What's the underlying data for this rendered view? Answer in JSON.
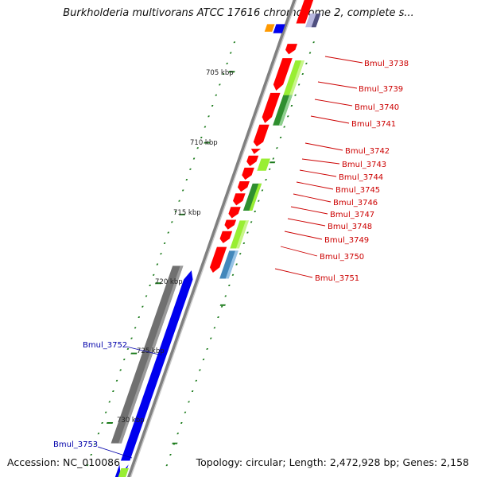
{
  "map": {
    "title": "Burkholderia multivorans ATCC 17616 chromosome 2, complete s...",
    "accession": "Accession: NC_010086",
    "topology": "Topology: circular; Length: 2,472,928 bp; Genes: 2,158"
  },
  "colors": {
    "forward_label": "#cc0000",
    "reverse_label": "#0000aa",
    "forward_cds": "#ff0000",
    "reverse_cds": "#0000ff",
    "backbone": "#808080",
    "ticks": "#1a7a1a",
    "cog_a": "#99ee33",
    "cog_b": "#2f8f2f",
    "cog_c": "#4488bb"
  },
  "ticks": [
    {
      "label": "705 kbp"
    },
    {
      "label": "710 kbp"
    },
    {
      "label": "715 kbp"
    },
    {
      "label": "720 kbp"
    },
    {
      "label": "725 kbp"
    },
    {
      "label": "730 kbp"
    }
  ],
  "genes": [
    {
      "label": "Bmul_3738",
      "strand": "forward"
    },
    {
      "label": "Bmul_3739",
      "strand": "forward"
    },
    {
      "label": "Bmul_3740",
      "strand": "forward"
    },
    {
      "label": "Bmul_3741",
      "strand": "forward"
    },
    {
      "label": "Bmul_3742",
      "strand": "forward"
    },
    {
      "label": "Bmul_3743",
      "strand": "forward"
    },
    {
      "label": "Bmul_3744",
      "strand": "forward"
    },
    {
      "label": "Bmul_3745",
      "strand": "forward"
    },
    {
      "label": "Bmul_3746",
      "strand": "forward"
    },
    {
      "label": "Bmul_3747",
      "strand": "forward"
    },
    {
      "label": "Bmul_3748",
      "strand": "forward"
    },
    {
      "label": "Bmul_3749",
      "strand": "forward"
    },
    {
      "label": "Bmul_3750",
      "strand": "forward"
    },
    {
      "label": "Bmul_3751",
      "strand": "forward"
    },
    {
      "label": "Bmul_3752",
      "strand": "reverse"
    },
    {
      "label": "Bmul_3753",
      "strand": "reverse"
    }
  ]
}
